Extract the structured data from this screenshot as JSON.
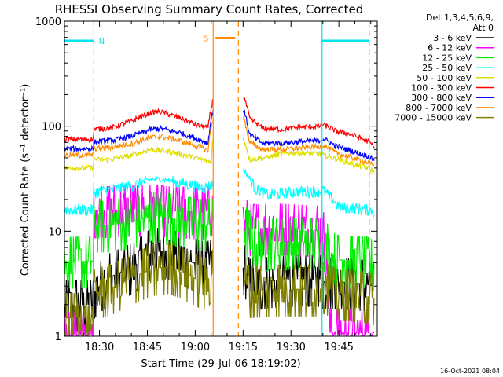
{
  "chart_data": {
    "type": "line",
    "title": "RHESSI Observing Summary Count Rates, Corrected",
    "xlabel": "Start Time (29-Jul-06 18:19:02)",
    "ylabel": "Corrected Count Rate (s⁻¹ detector⁻¹)",
    "x_unit": "minutes after 18:19:02",
    "xlim": [
      0,
      98
    ],
    "ylim": [
      1,
      1000
    ],
    "yscale": "log",
    "x_ticks": [
      {
        "t": 10.97,
        "label": "18:30"
      },
      {
        "t": 25.97,
        "label": "18:45"
      },
      {
        "t": 40.97,
        "label": "19:00"
      },
      {
        "t": 55.97,
        "label": "19:15"
      },
      {
        "t": 70.97,
        "label": "19:30"
      },
      {
        "t": 85.97,
        "label": "19:45"
      }
    ],
    "y_ticks": [
      {
        "v": 1,
        "label": "1"
      },
      {
        "v": 10,
        "label": "10"
      },
      {
        "v": 100,
        "label": "100"
      },
      {
        "v": 1000,
        "label": "1000"
      }
    ],
    "legend_header": [
      "Det 1,3,4,5,6,9,",
      "Att 0"
    ],
    "timestamp": "16-Oct-2021 08:04",
    "flags": [
      {
        "label": "N",
        "color": "#00e5ee",
        "y": 650,
        "segments": [
          [
            0,
            9.2
          ],
          [
            80.7,
            95.5
          ]
        ],
        "lines": [
          {
            "t": 9.2,
            "dash": true
          },
          {
            "t": 80.7,
            "dash": false
          },
          {
            "t": 95.5,
            "dash": true
          }
        ]
      },
      {
        "label": "S",
        "color": "#ff8c00",
        "y": 690,
        "segments": [
          [
            47.3,
            53.5
          ]
        ],
        "lines": [
          {
            "t": 46.6,
            "dash": false
          },
          {
            "t": 54.5,
            "dash": true
          }
        ]
      }
    ],
    "gap": [
      46.8,
      56.0
    ],
    "series": [
      {
        "name": "3 - 6 keV",
        "color": "#000000",
        "x": [
          0,
          9,
          9.1,
          14,
          22,
          27,
          32,
          38,
          44,
          46.6,
          56.2,
          58,
          62,
          70,
          80,
          81,
          85,
          91,
          95,
          97
        ],
        "y": [
          2,
          2,
          2.6,
          3.6,
          4.6,
          6.2,
          6.5,
          5.3,
          4.6,
          5,
          4.5,
          3.2,
          3.3,
          3.5,
          3.5,
          3.3,
          3.3,
          3.2,
          3.1,
          3.0
        ]
      },
      {
        "name": "6 - 12 keV",
        "color": "#ff00ff",
        "x": [
          0,
          9,
          9.1,
          15,
          26,
          36,
          44,
          46.6,
          56.2,
          58,
          66,
          80,
          81,
          83,
          86,
          90,
          95,
          97
        ],
        "y": [
          1,
          1,
          15.8,
          15.8,
          16.3,
          15.5,
          15.1,
          17,
          13,
          10.5,
          10.8,
          10.3,
          9.8,
          1.08,
          1.08,
          1.08,
          1.08,
          1.08
        ]
      },
      {
        "name": "12 - 25 keV",
        "color": "#00ee00",
        "x": [
          0,
          9,
          9.1,
          15,
          22,
          27,
          31,
          38,
          44,
          46.6,
          56.2,
          60,
          68,
          80,
          81,
          85,
          90,
          95,
          97
        ],
        "y": [
          5.2,
          5.2,
          11.3,
          11.5,
          12.5,
          14,
          13.8,
          12.6,
          11.5,
          12,
          10.5,
          7.5,
          7.8,
          7.8,
          7.8,
          5.4,
          5.2,
          5.2,
          4.8
        ]
      },
      {
        "name": "25 - 50 keV",
        "color": "#00ffff",
        "x": [
          0,
          9,
          9.1,
          15,
          22,
          27,
          30,
          36,
          44,
          46.6,
          56.2,
          60,
          64,
          68,
          74,
          80,
          81,
          86,
          91,
          95,
          97
        ],
        "y": [
          16,
          16,
          23.5,
          24.8,
          27.5,
          31,
          31.5,
          29,
          26,
          28,
          38,
          25,
          22,
          23,
          24,
          24,
          24.5,
          17,
          16.5,
          16,
          15.5
        ]
      },
      {
        "name": "50 - 100 keV",
        "color": "#dddd00",
        "x": [
          0,
          9,
          9.1,
          14,
          20,
          27,
          32,
          38,
          44,
          46,
          46.6,
          56.2,
          58,
          64,
          70,
          80,
          81,
          86,
          91,
          95,
          97
        ],
        "y": [
          40,
          40,
          48,
          48,
          52,
          60,
          58,
          53,
          47,
          46,
          80,
          75,
          48,
          51,
          56,
          55,
          53,
          48,
          43,
          40,
          37
        ]
      },
      {
        "name": "100 - 300 keV",
        "color": "#ff0000",
        "x": [
          0,
          9,
          9.1,
          15,
          21,
          27,
          30,
          36,
          42,
          45,
          46.6,
          56.2,
          58,
          62,
          68,
          74,
          80,
          81,
          85,
          90,
          95,
          97
        ],
        "y": [
          75,
          75,
          93,
          97,
          112,
          134,
          138,
          120,
          101,
          97,
          180,
          190,
          118,
          96,
          93,
          98,
          100,
          104,
          90,
          83,
          72,
          64
        ]
      },
      {
        "name": "300 - 800 keV",
        "color": "#0000ff",
        "x": [
          0,
          9,
          9.1,
          15,
          21,
          27,
          30,
          36,
          42,
          45,
          46.6,
          56.2,
          58,
          62,
          68,
          74,
          80,
          81,
          85,
          90,
          95,
          97
        ],
        "y": [
          61,
          61,
          71,
          73,
          80,
          93,
          95,
          87,
          75,
          69,
          145,
          142,
          83,
          69,
          69,
          71,
          73,
          76,
          65,
          58,
          52,
          48
        ]
      },
      {
        "name": "800 - 7000 keV",
        "color": "#ff8c00",
        "x": [
          0,
          9,
          9.1,
          15,
          21,
          27,
          30,
          36,
          42,
          45,
          46.6,
          56.2,
          58,
          62,
          68,
          74,
          80,
          81,
          85,
          90,
          95,
          97
        ],
        "y": [
          53,
          53,
          61,
          63,
          68,
          78,
          80,
          73,
          64,
          59,
          120,
          118,
          70,
          60,
          60,
          62,
          64,
          66,
          56,
          50,
          45,
          42
        ]
      },
      {
        "name": "7000 - 15000 keV",
        "color": "#808000",
        "x": [
          0,
          9,
          9.1,
          16,
          22,
          28,
          33,
          38,
          44,
          46.6,
          56.2,
          58,
          66,
          80,
          81,
          85,
          90,
          95,
          97
        ],
        "y": [
          1.5,
          1.5,
          2.5,
          3.0,
          3.7,
          4.4,
          4.6,
          3.9,
          3.2,
          4,
          3.5,
          2.7,
          2.8,
          2.8,
          3,
          2.6,
          2.5,
          2.4,
          2.3
        ]
      }
    ]
  }
}
